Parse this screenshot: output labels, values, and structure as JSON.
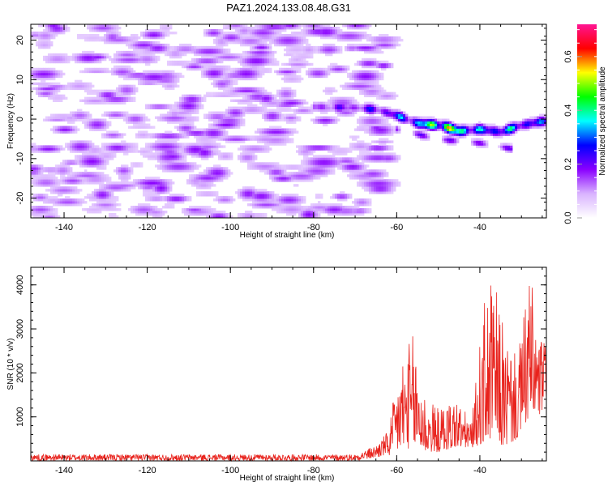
{
  "figure_title": "PAZ1.2024.133.08.48.G31",
  "chart_data": [
    {
      "type": "heatmap",
      "title": "",
      "xlabel": "Height of straight line (km)",
      "ylabel": "Frequency (Hz)",
      "xlim": [
        -148,
        -24
      ],
      "ylim": [
        -25,
        24
      ],
      "xticks": [
        -140,
        -120,
        -100,
        -80,
        -60,
        -40
      ],
      "yticks": [
        20,
        10,
        0,
        -10,
        -20
      ],
      "colorbar": {
        "label": "Normalized spectral amplitude",
        "range": [
          0.0,
          0.72
        ],
        "ticks": [
          0.0,
          0.2,
          0.4,
          0.6
        ],
        "colors": [
          "#ffffff",
          "#d9b3ff",
          "#8a00ff",
          "#0000ff",
          "#00ffff",
          "#00ff00",
          "#ffff00",
          "#ff0000",
          "#ff1493"
        ]
      },
      "features": {
        "noise_region_x": [
          -148,
          -62
        ],
        "noise_amplitude": 0.15,
        "signal_ridge": [
          {
            "x": -80,
            "y": 3.2,
            "v": 0.22
          },
          {
            "x": -70,
            "y": 3.0,
            "v": 0.26
          },
          {
            "x": -65,
            "y": 2.5,
            "v": 0.3
          },
          {
            "x": -60,
            "y": 1.0,
            "v": 0.36
          },
          {
            "x": -55,
            "y": -1.0,
            "v": 0.45
          },
          {
            "x": -49,
            "y": -1.6,
            "v": 0.72
          },
          {
            "x": -45,
            "y": -3.0,
            "v": 0.6
          },
          {
            "x": -40,
            "y": -2.5,
            "v": 0.4
          },
          {
            "x": -35,
            "y": -3.2,
            "v": 0.45
          },
          {
            "x": -30,
            "y": -1.5,
            "v": 0.42
          },
          {
            "x": -25,
            "y": -0.5,
            "v": 0.35
          }
        ],
        "secondary_ridge": [
          {
            "x": -60,
            "y": -2.5,
            "v": 0.22
          },
          {
            "x": -50,
            "y": -5.0,
            "v": 0.22
          },
          {
            "x": -40,
            "y": -6.0,
            "v": 0.2
          },
          {
            "x": -32,
            "y": -7.5,
            "v": 0.22
          }
        ]
      }
    },
    {
      "type": "line",
      "title": "",
      "xlabel": "Height of straight line (km)",
      "ylabel": "SNR (10 * v/v)",
      "xlim": [
        -148,
        -24
      ],
      "ylim": [
        0,
        4400
      ],
      "xticks": [
        -140,
        -120,
        -100,
        -80,
        -60,
        -40
      ],
      "yticks": [
        1000,
        2000,
        3000,
        4000
      ],
      "series": [
        {
          "color": "#e8221c",
          "envelope": [
            {
              "x": -148,
              "low": 0,
              "high": 150
            },
            {
              "x": -70,
              "low": 0,
              "high": 150
            },
            {
              "x": -65,
              "low": 50,
              "high": 350
            },
            {
              "x": -62,
              "low": 100,
              "high": 700
            },
            {
              "x": -59,
              "low": 250,
              "high": 2400
            },
            {
              "x": -56,
              "low": 300,
              "high": 2900
            },
            {
              "x": -53,
              "low": 200,
              "high": 1500
            },
            {
              "x": -50,
              "low": 200,
              "high": 1200
            },
            {
              "x": -46,
              "low": 300,
              "high": 1500
            },
            {
              "x": -42,
              "low": 300,
              "high": 900
            },
            {
              "x": -39,
              "low": 400,
              "high": 3600
            },
            {
              "x": -37,
              "low": 500,
              "high": 4250
            },
            {
              "x": -34,
              "low": 300,
              "high": 3000
            },
            {
              "x": -31,
              "low": 500,
              "high": 2300
            },
            {
              "x": -28,
              "low": 1000,
              "high": 4350
            },
            {
              "x": -26,
              "low": 900,
              "high": 3000
            },
            {
              "x": -24,
              "low": 1400,
              "high": 2700
            }
          ]
        }
      ]
    }
  ]
}
